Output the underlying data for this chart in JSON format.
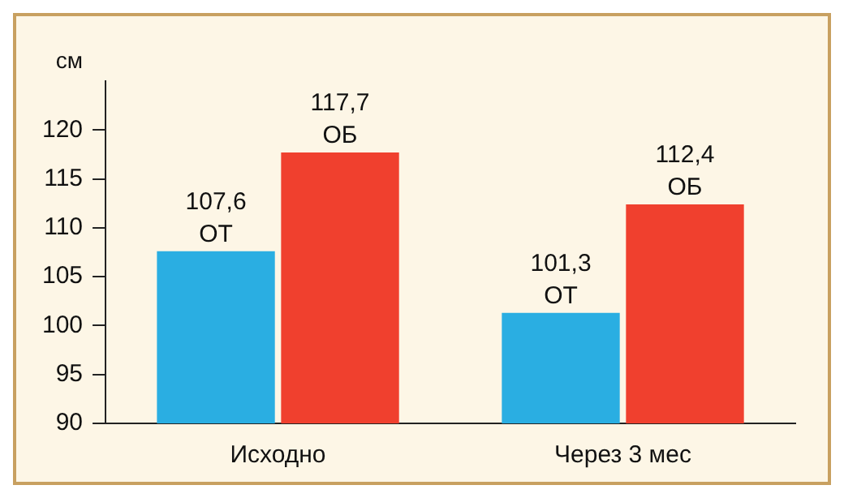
{
  "chart_data": {
    "type": "bar",
    "ylabel": "см",
    "categories": [
      "Исходно",
      "Через 3 мес"
    ],
    "series": [
      {
        "name": "ОТ",
        "color": "#2aaee2",
        "values": [
          107.6,
          101.3
        ],
        "value_labels": [
          "107,6",
          "101,3"
        ]
      },
      {
        "name": "ОБ",
        "color": "#f0402e",
        "values": [
          117.7,
          112.4
        ],
        "value_labels": [
          "117,7",
          "112,4"
        ]
      }
    ],
    "ylim": [
      90,
      125
    ],
    "yticks": [
      90,
      95,
      100,
      105,
      110,
      115,
      120
    ],
    "legend": false
  }
}
